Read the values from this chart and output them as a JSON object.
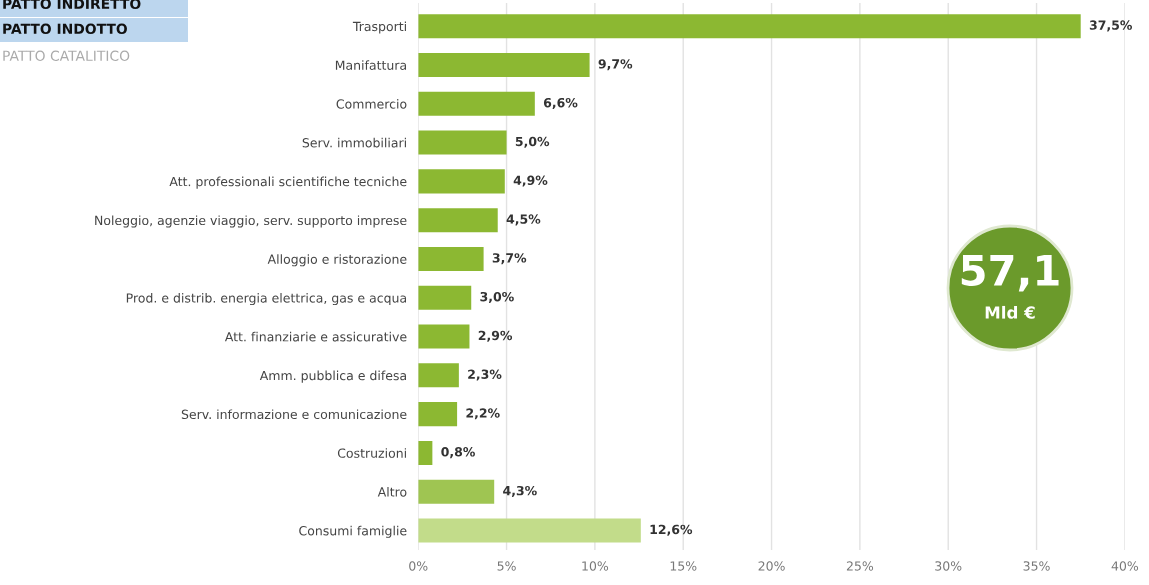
{
  "chart_data": {
    "type": "bar",
    "orientation": "horizontal",
    "categories": [
      "Trasporti",
      "Manifattura",
      "Commercio",
      "Serv. immobiliari",
      "Att. professionali scientifiche tecniche",
      "Noleggio, agenzie viaggio, serv. supporto imprese",
      "Alloggio e ristorazione",
      "Prod. e distrib. energia elettrica, gas e acqua",
      "Att. finanziarie e assicurative",
      "Amm. pubblica e difesa",
      "Serv. informazione e comunicazione",
      "Costruzioni",
      "Altro",
      "Consumi famiglie"
    ],
    "values": [
      37.5,
      9.7,
      6.6,
      5.0,
      4.9,
      4.5,
      3.7,
      3.0,
      2.9,
      2.3,
      2.2,
      0.8,
      4.3,
      12.6
    ],
    "value_labels": [
      "37,5%",
      "9,7%",
      "6,6%",
      "5,0%",
      "4,9%",
      "4,5%",
      "3,7%",
      "3,0%",
      "2,9%",
      "2,3%",
      "2,2%",
      "0,8%",
      "4,3%",
      "12,6%"
    ],
    "colors": [
      "#8cb832",
      "#8cb832",
      "#8cb832",
      "#8cb832",
      "#8cb832",
      "#8cb832",
      "#8cb832",
      "#8cb832",
      "#8cb832",
      "#8cb832",
      "#8cb832",
      "#8cb832",
      "#9fc552",
      "#c2dc8a"
    ],
    "xlim": [
      0,
      40
    ],
    "xticks": [
      {
        "value": 0,
        "label": "0%"
      },
      {
        "value": 5,
        "label": "5%"
      },
      {
        "value": 10,
        "label": "10%"
      },
      {
        "value": 15,
        "label": "15%"
      },
      {
        "value": 20,
        "label": "20%"
      },
      {
        "value": 25,
        "label": "25%"
      },
      {
        "value": 30,
        "label": "30%"
      },
      {
        "value": 35,
        "label": "35%"
      },
      {
        "value": 40,
        "label": "40%"
      }
    ],
    "grid": "x",
    "annotations": [
      "PATTO INDIRETTO",
      "PATTO INDOTTO",
      "PATTO CATALITICO",
      "57,1",
      "Mld €"
    ]
  }
}
